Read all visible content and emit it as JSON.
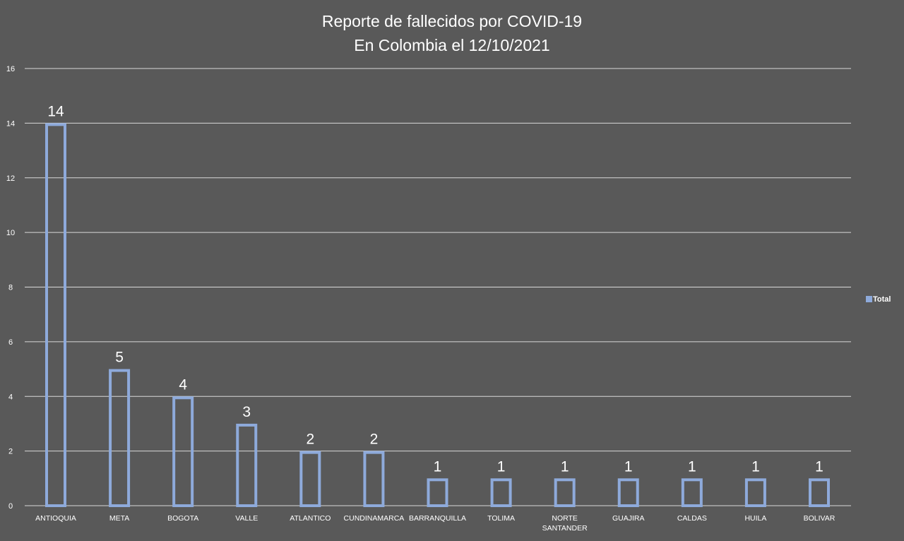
{
  "chart_data": {
    "type": "bar",
    "title": "Reporte de fallecidos por COVID-19",
    "subtitle": "En Colombia el 12/10/2021",
    "categories": [
      "ANTIOQUIA",
      "META",
      "BOGOTA",
      "VALLE",
      "ATLANTICO",
      "CUNDINAMARCA",
      "BARRANQUILLA",
      "TOLIMA",
      "NORTE SANTANDER",
      "GUAJIRA",
      "CALDAS",
      "HUILA",
      "BOLIVAR"
    ],
    "series": [
      {
        "name": "Total",
        "values": [
          14,
          5,
          4,
          3,
          2,
          2,
          1,
          1,
          1,
          1,
          1,
          1,
          1
        ]
      }
    ],
    "xlabel": "",
    "ylabel": "",
    "ylim": [
      0,
      16
    ],
    "yticks": [
      0,
      2,
      4,
      6,
      8,
      10,
      12,
      14,
      16
    ],
    "grid": true,
    "legend": "right",
    "colors": {
      "background": "#595959",
      "bar_outline": "#8eaadb",
      "grid": "#d9d9d9",
      "text": "#ffffff"
    }
  }
}
